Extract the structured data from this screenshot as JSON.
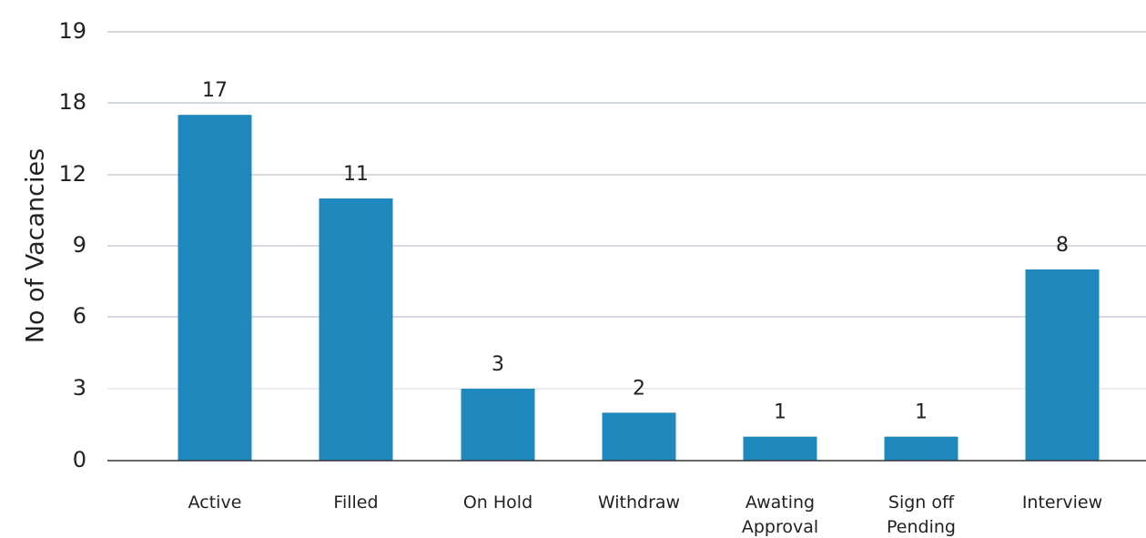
{
  "chart_data": {
    "type": "bar",
    "ylabel": "No of Vacancies",
    "xlabel": "",
    "categories": [
      "Active",
      "Filled",
      "On Hold",
      "Withdraw",
      "Awating Approval",
      "Sign off Pending",
      "Interview"
    ],
    "category_lines": [
      [
        "Active"
      ],
      [
        "Filled"
      ],
      [
        "On Hold"
      ],
      [
        "Withdraw"
      ],
      [
        "Awating",
        "Approval"
      ],
      [
        "Sign off",
        "Pending"
      ],
      [
        "Interview"
      ]
    ],
    "values": [
      17,
      11,
      3,
      2,
      1,
      1,
      8
    ],
    "y_ticks": [
      0,
      3,
      6,
      9,
      12,
      18,
      19
    ],
    "y_tick_labels": [
      "0",
      "3",
      "6",
      "9",
      "12",
      "18",
      "19"
    ],
    "grid": true,
    "legend": "none",
    "colors": {
      "bar": "#1f88bd",
      "grid": "#a8b4bf",
      "grid_low": "#d3dde4",
      "axis": "#333333"
    }
  }
}
